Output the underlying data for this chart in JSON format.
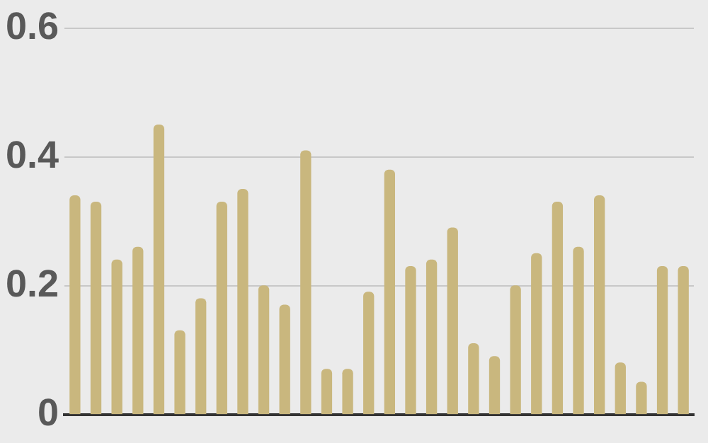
{
  "chart_data": {
    "type": "bar",
    "categories": [
      null,
      null,
      null,
      null,
      null,
      null,
      null,
      null,
      null,
      null,
      null,
      null,
      null,
      null,
      null,
      null,
      null,
      null,
      null,
      null,
      null,
      null,
      null,
      null,
      null,
      null,
      null,
      null,
      null,
      null
    ],
    "values": [
      0.34,
      0.33,
      0.24,
      0.26,
      0.45,
      0.13,
      0.18,
      0.33,
      0.35,
      0.2,
      0.17,
      0.41,
      0.07,
      0.07,
      0.19,
      0.38,
      0.23,
      0.24,
      0.29,
      0.11,
      0.09,
      0.2,
      0.25,
      0.33,
      0.26,
      0.34,
      0.08,
      0.05,
      0.23,
      0.23
    ],
    "color": "#c9b77e",
    "ylim": [
      0,
      0.6
    ],
    "yticks": [
      {
        "value": 0,
        "label": "0"
      },
      0.2,
      0.4,
      0.6
    ],
    "grid": "y",
    "tick_labels": "y",
    "legend": false
  }
}
